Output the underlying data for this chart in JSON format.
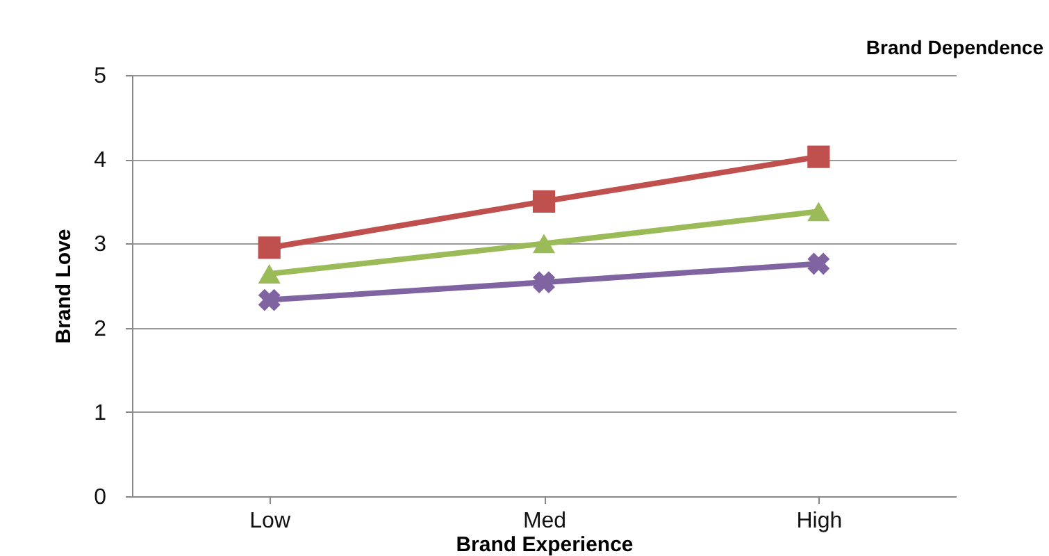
{
  "chart_data": {
    "type": "line",
    "xlabel": "Brand Experience",
    "ylabel": "Brand Love",
    "annotations": [
      "Brand Dependence"
    ],
    "categories": [
      "Low",
      "Med",
      "High"
    ],
    "series": [
      {
        "color": "#c0504d",
        "marker": "square",
        "values": [
          2.95,
          3.5,
          4.03
        ]
      },
      {
        "color": "#9bbb59",
        "marker": "triangle",
        "values": [
          2.64,
          3.0,
          3.38
        ]
      },
      {
        "color": "#8064a2",
        "marker": "cross",
        "values": [
          2.33,
          2.54,
          2.76
        ]
      }
    ],
    "ylim": [
      0,
      5
    ],
    "yticks": [
      0,
      1,
      2,
      3,
      4,
      5
    ],
    "grid": "y",
    "legend": false
  }
}
